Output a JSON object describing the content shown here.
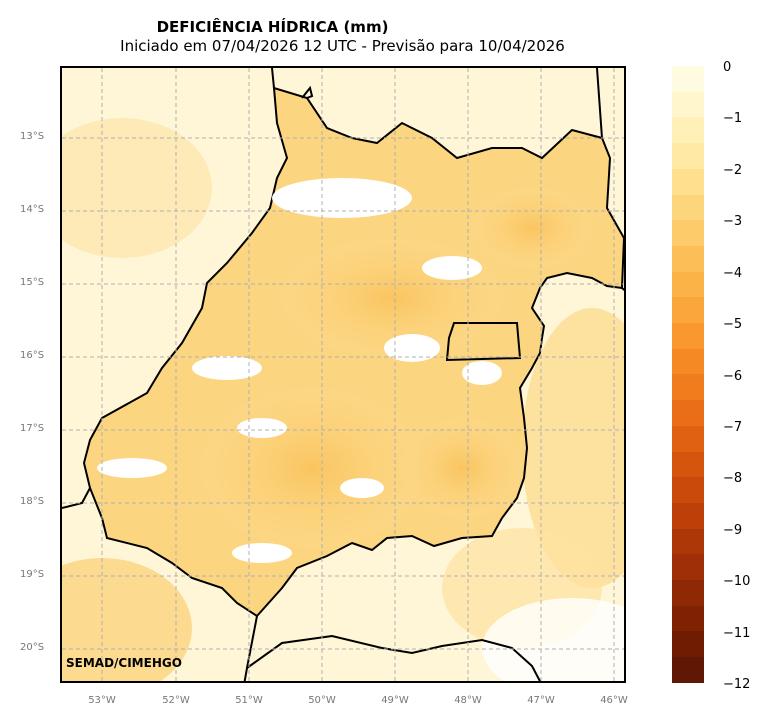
{
  "title": {
    "main": "DEFICIÊNCIA HÍDRICA (mm)",
    "sub": "Iniciado em 07/04/2026 12 UTC - Previsão para 10/04/2026"
  },
  "map": {
    "lat_labels": [
      "13°S",
      "14°S",
      "15°S",
      "16°S",
      "17°S",
      "18°S",
      "19°S",
      "20°S"
    ],
    "lon_labels": [
      "53°W",
      "52°W",
      "51°W",
      "50°W",
      "49°W",
      "48°W",
      "47°W",
      "46°W"
    ],
    "credit": "SEMAD/CIMEHGO",
    "gridlines": true,
    "grid_color": "#b0b0b0",
    "border_color": "#000000",
    "fill_light": "#fff3c8",
    "fill_mid": "#fcd27a",
    "fill_strong": "#f7b645"
  },
  "colorbar": {
    "ticks": [
      "0",
      "−1",
      "−2",
      "−3",
      "−4",
      "−5",
      "−6",
      "−7",
      "−8",
      "−9",
      "−10",
      "−11",
      "−12"
    ],
    "colors": [
      "#fffbe0",
      "#fff6cc",
      "#fff0b8",
      "#ffe9a4",
      "#fee08f",
      "#fdd67c",
      "#fdcb6a",
      "#fcbf58",
      "#fbb347",
      "#faa63a",
      "#f8982f",
      "#f58a25",
      "#f07c1d",
      "#e96e17",
      "#e06112",
      "#d6550e",
      "#ca4a0b",
      "#bd4009",
      "#ae3707",
      "#9f2f06",
      "#8f2805",
      "#7f2204",
      "#6f1c03",
      "#601703"
    ]
  }
}
